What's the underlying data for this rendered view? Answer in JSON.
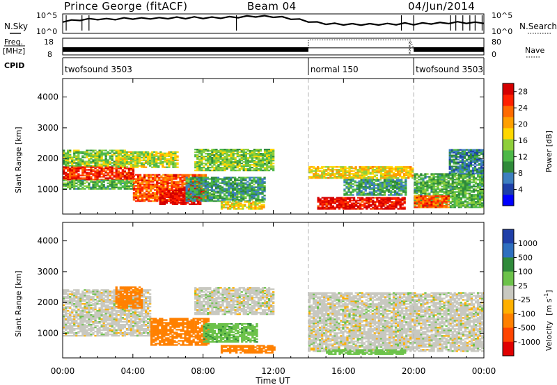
{
  "header": {
    "station": "Prince George (fitACF)",
    "beam": "Beam 04",
    "date": "04/Jun/2014"
  },
  "chart_data": [
    {
      "type": "line",
      "name": "noise-panel",
      "left_label": "N.Sky",
      "right_label": "N.Search",
      "y_tick_top": "10^5",
      "y_tick_bottom": "10^0",
      "log_scale": true,
      "noise_sky": [
        [
          0.0,
          0.62
        ],
        [
          0.5,
          0.65
        ],
        [
          1.0,
          0.7
        ],
        [
          1.5,
          0.72
        ],
        [
          2.0,
          0.74
        ],
        [
          2.5,
          0.72
        ],
        [
          3.0,
          0.74
        ],
        [
          3.5,
          0.76
        ],
        [
          4.0,
          0.77
        ],
        [
          4.5,
          0.76
        ],
        [
          5.0,
          0.78
        ],
        [
          5.5,
          0.77
        ],
        [
          6.0,
          0.79
        ],
        [
          6.5,
          0.8
        ],
        [
          7.0,
          0.79
        ],
        [
          7.5,
          0.81
        ],
        [
          8.0,
          0.8
        ],
        [
          8.5,
          0.8
        ],
        [
          9.0,
          0.81
        ],
        [
          9.5,
          0.82
        ],
        [
          10.0,
          0.84
        ],
        [
          10.5,
          0.86
        ],
        [
          11.0,
          0.88
        ],
        [
          11.5,
          0.87
        ],
        [
          12.0,
          0.86
        ],
        [
          12.5,
          0.82
        ],
        [
          13.0,
          0.76
        ],
        [
          13.5,
          0.7
        ],
        [
          14.0,
          0.62
        ],
        [
          14.5,
          0.55
        ],
        [
          15.0,
          0.5
        ],
        [
          15.5,
          0.48
        ],
        [
          16.0,
          0.47
        ],
        [
          16.5,
          0.46
        ],
        [
          17.0,
          0.46
        ],
        [
          17.5,
          0.46
        ],
        [
          18.0,
          0.47
        ],
        [
          18.5,
          0.47
        ],
        [
          19.0,
          0.48
        ],
        [
          19.5,
          0.5
        ],
        [
          20.0,
          0.48
        ],
        [
          20.5,
          0.5
        ],
        [
          21.0,
          0.52
        ],
        [
          21.5,
          0.52
        ],
        [
          22.0,
          0.54
        ],
        [
          22.5,
          0.56
        ],
        [
          23.0,
          0.55
        ],
        [
          23.5,
          0.54
        ],
        [
          24.0,
          0.55
        ]
      ],
      "noise_search_spikes": [
        0.2,
        1.1,
        1.5,
        9.9,
        19.3,
        20.0,
        22.1,
        22.4,
        22.8,
        23.2,
        23.5,
        23.9
      ]
    },
    {
      "type": "line",
      "name": "frequency-panel",
      "left_label_line1": "Freq.",
      "left_label_line2": "[MHz]",
      "left_ticks": [
        "18",
        "8"
      ],
      "right_label": "Nave",
      "right_ticks": [
        "80",
        "0"
      ],
      "freq_mhz": [
        [
          0.0,
          12.2
        ],
        [
          14.0,
          12.2
        ],
        [
          14.0,
          12.2
        ],
        [
          20.0,
          12.2
        ],
        [
          20.0,
          12.2
        ],
        [
          24.0,
          12.2
        ]
      ],
      "freq_band_mhz": [
        9.8,
        12.6
      ],
      "nave": [
        [
          0.0,
          30
        ],
        [
          14.0,
          30
        ],
        [
          14.0,
          72
        ],
        [
          19.8,
          72
        ],
        [
          20.0,
          30
        ],
        [
          24.0,
          30
        ]
      ]
    },
    {
      "type": "table",
      "name": "cpid-strip",
      "label": "CPID",
      "segments": [
        {
          "start": 0,
          "end": 14,
          "label": "twofsound 3503"
        },
        {
          "start": 14,
          "end": 20,
          "label": "normal 150"
        },
        {
          "start": 20,
          "end": 24,
          "label": "twofsound 3503"
        }
      ]
    },
    {
      "type": "heatmap",
      "name": "power-rti",
      "ylabel": "Slant Range [km]",
      "xlim": [
        0,
        24
      ],
      "ylim": [
        200,
        4600
      ],
      "y_ticks": [
        1000,
        2000,
        3000,
        4000
      ],
      "colorbar_label": "Power [dB]",
      "colorbar_ticks": [
        "4",
        "8",
        "12",
        "16",
        "20",
        "24",
        "28"
      ],
      "colorbar_range": [
        0,
        30
      ],
      "colors": [
        "#0000ff",
        "#1d3fa8",
        "#3d7fbf",
        "#2f8a3a",
        "#4db848",
        "#8fcf3a",
        "#ffd700",
        "#ff9f00",
        "#ff6a00",
        "#ff2000",
        "#d40000"
      ],
      "backscatter_bands": [
        {
          "t0": 0.0,
          "t1": 4.0,
          "r0": 1300,
          "r1": 1750,
          "value": 26
        },
        {
          "t0": 0.0,
          "t1": 4.0,
          "r0": 1000,
          "r1": 1300,
          "value": 12
        },
        {
          "t0": 0.0,
          "t1": 3.5,
          "r0": 1750,
          "r1": 2250,
          "value": 14
        },
        {
          "t0": 4.0,
          "t1": 8.2,
          "r0": 600,
          "r1": 1500,
          "value": 24
        },
        {
          "t0": 5.5,
          "t1": 7.8,
          "r0": 500,
          "r1": 1000,
          "value": 29
        },
        {
          "t0": 3.0,
          "t1": 6.5,
          "r0": 1700,
          "r1": 2200,
          "value": 16
        },
        {
          "t0": 7.0,
          "t1": 11.5,
          "r0": 600,
          "r1": 1400,
          "value": 10
        },
        {
          "t0": 7.5,
          "t1": 12.0,
          "r0": 1600,
          "r1": 2300,
          "value": 14
        },
        {
          "t0": 9.0,
          "t1": 11.5,
          "r0": 350,
          "r1": 600,
          "value": 18
        },
        {
          "t0": 14.0,
          "t1": 20.0,
          "r0": 1350,
          "r1": 1750,
          "value": 18
        },
        {
          "t0": 14.5,
          "t1": 19.5,
          "r0": 350,
          "r1": 750,
          "value": 28
        },
        {
          "t0": 16.0,
          "t1": 19.5,
          "r0": 800,
          "r1": 1300,
          "value": 10
        },
        {
          "t0": 20.0,
          "t1": 24.0,
          "r0": 400,
          "r1": 1500,
          "value": 12
        },
        {
          "t0": 20.0,
          "t1": 22.0,
          "r0": 400,
          "r1": 800,
          "value": 24
        },
        {
          "t0": 22.0,
          "t1": 24.0,
          "r0": 1500,
          "r1": 2300,
          "value": 8
        }
      ]
    },
    {
      "type": "heatmap",
      "name": "velocity-rti",
      "ylabel": "Slant Range [km]",
      "xlabel": "Time UT",
      "xlim": [
        0,
        24
      ],
      "ylim": [
        200,
        4600
      ],
      "y_ticks": [
        1000,
        2000,
        3000,
        4000
      ],
      "x_tick_labels": [
        "00:00",
        "04:00",
        "08:00",
        "12:00",
        "16:00",
        "20:00",
        "00:00"
      ],
      "colorbar_label_main": "Velocity",
      "colorbar_label_unit": "[m s",
      "colorbar_label_exp": "-1",
      "colorbar_label_end": "]",
      "colorbar_ticks": [
        "1000",
        "500",
        "100",
        "25",
        "-25",
        "-100",
        "-500",
        "-1000"
      ],
      "colors": [
        "#1f3fa8",
        "#2e6fbf",
        "#2f8a3a",
        "#6cc24a",
        "#c8c8c0",
        "#ffb000",
        "#ff8000",
        "#ff4500",
        "#e00000"
      ],
      "ground_scatter_color": "#c8c8c0",
      "backscatter_bands": [
        {
          "t0": 0.0,
          "t1": 5.0,
          "r0": 900,
          "r1": 2400,
          "value": 0
        },
        {
          "t0": 5.0,
          "t1": 8.3,
          "r0": 600,
          "r1": 1500,
          "value": -400
        },
        {
          "t0": 3.0,
          "t1": 4.5,
          "r0": 1800,
          "r1": 2500,
          "value": -200
        },
        {
          "t0": 7.5,
          "t1": 12.0,
          "r0": 1600,
          "r1": 2500,
          "value": 0
        },
        {
          "t0": 8.0,
          "t1": 11.0,
          "r0": 700,
          "r1": 1300,
          "value": 80
        },
        {
          "t0": 9.0,
          "t1": 12.0,
          "r0": 350,
          "r1": 600,
          "value": -200
        },
        {
          "t0": 14.0,
          "t1": 24.0,
          "r0": 400,
          "r1": 2300,
          "value": 0
        },
        {
          "t0": 15.0,
          "t1": 19.5,
          "r0": 300,
          "r1": 450,
          "value": 60
        }
      ]
    }
  ]
}
